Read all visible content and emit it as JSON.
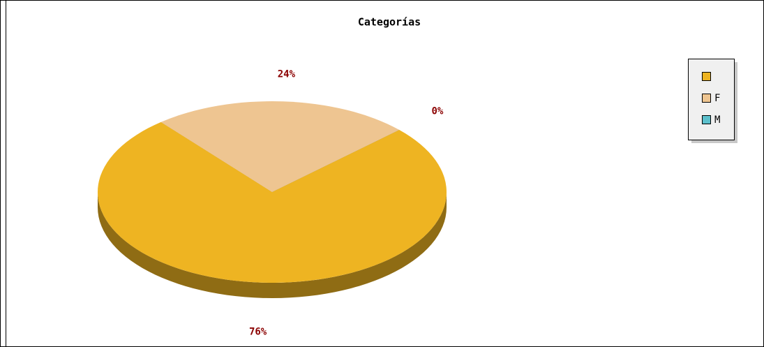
{
  "chart_data": {
    "type": "pie",
    "title": "Categorías",
    "categories": [
      null,
      "F",
      "M"
    ],
    "values": [
      76,
      24,
      0
    ],
    "value_labels": [
      "76%",
      "24%",
      "0%"
    ],
    "colors": [
      "#eeb422",
      "#eec591",
      "#5cc0cc"
    ],
    "legend": "top-right"
  }
}
